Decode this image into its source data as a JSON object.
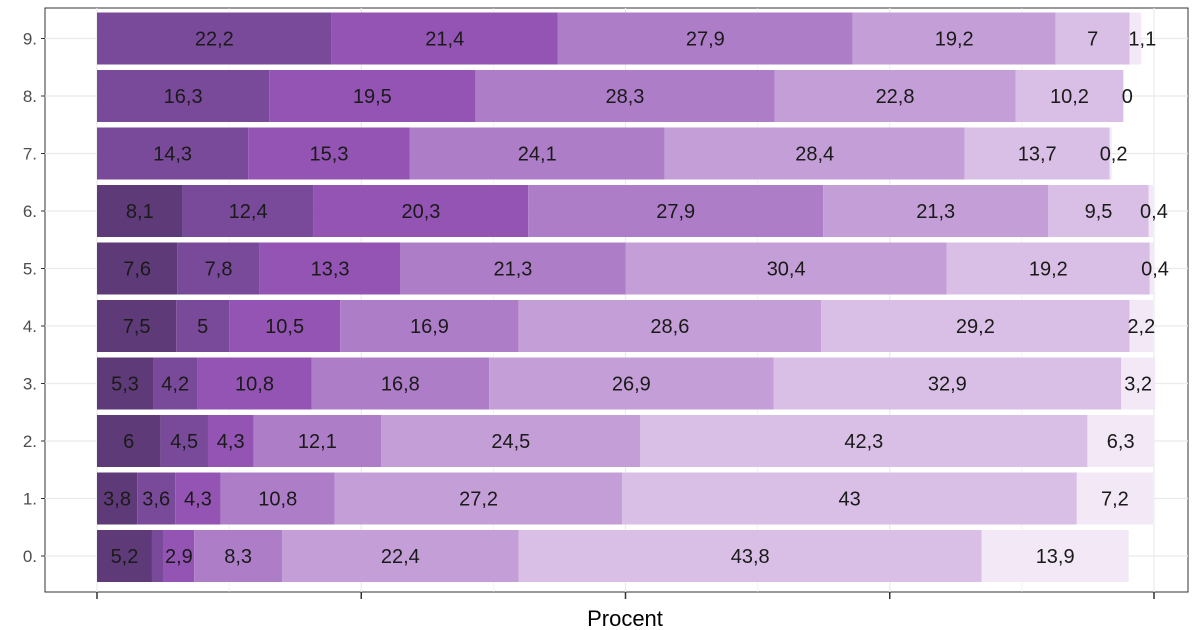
{
  "chart_data": {
    "type": "bar",
    "orientation": "horizontal",
    "stacked": true,
    "stack_total": 100,
    "xlabel": "Procent",
    "ylabel": "",
    "xlim": [
      0,
      100
    ],
    "grid": true,
    "categories": [
      "0.",
      "1.",
      "2.",
      "3.",
      "4.",
      "5.",
      "6.",
      "7.",
      "8.",
      "9."
    ],
    "rows": [
      {
        "category": "0.",
        "values": [
          5.2,
          1.1,
          2.9,
          8.3,
          22.4,
          43.8,
          13.9
        ],
        "labels": [
          "5,2",
          "",
          "2,9",
          "8,3",
          "22,4",
          "43,8",
          "13,9"
        ]
      },
      {
        "category": "1.",
        "values": [
          3.8,
          3.6,
          4.3,
          10.8,
          27.2,
          43,
          7.2
        ],
        "labels": [
          "3,8",
          "3,6",
          "4,3",
          "10,8",
          "27,2",
          "43",
          "7,2"
        ]
      },
      {
        "category": "2.",
        "values": [
          6,
          4.5,
          4.3,
          12.1,
          24.5,
          42.3,
          6.3
        ],
        "labels": [
          "6",
          "4,5",
          "4,3",
          "12,1",
          "24,5",
          "42,3",
          "6,3"
        ]
      },
      {
        "category": "3.",
        "values": [
          5.3,
          4.2,
          10.8,
          16.8,
          26.9,
          32.9,
          3.2
        ],
        "labels": [
          "5,3",
          "4,2",
          "10,8",
          "16,8",
          "26,9",
          "32,9",
          "3,2"
        ]
      },
      {
        "category": "4.",
        "values": [
          7.5,
          5,
          10.5,
          16.9,
          28.6,
          29.2,
          2.2
        ],
        "labels": [
          "7,5",
          "5",
          "10,5",
          "16,9",
          "28,6",
          "29,2",
          "2,2"
        ]
      },
      {
        "category": "5.",
        "values": [
          7.6,
          7.8,
          13.3,
          21.3,
          30.4,
          19.2,
          0.4
        ],
        "labels": [
          "7,6",
          "7,8",
          "13,3",
          "21,3",
          "30,4",
          "19,2",
          "0,4"
        ]
      },
      {
        "category": "6.",
        "values": [
          8.1,
          12.4,
          20.3,
          27.9,
          21.3,
          9.5,
          0.4
        ],
        "labels": [
          "8,1",
          "12,4",
          "20,3",
          "27,9",
          "21,3",
          "9,5",
          "0,4"
        ]
      },
      {
        "category": "7.",
        "values": [
          14.3,
          15.3,
          24.1,
          28.4,
          13.7,
          0.2
        ],
        "labels": [
          "14,3",
          "15,3",
          "24,1",
          "28,4",
          "13,7",
          "0,2"
        ],
        "color_offset": 1
      },
      {
        "category": "8.",
        "values": [
          16.3,
          19.5,
          28.3,
          22.8,
          10.2,
          0
        ],
        "labels": [
          "16,3",
          "19,5",
          "28,3",
          "22,8",
          "10,2",
          "0"
        ],
        "color_offset": 1
      },
      {
        "category": "9.",
        "values": [
          22.2,
          21.4,
          27.9,
          19.2,
          7,
          1.1
        ],
        "labels": [
          "22,2",
          "21,4",
          "27,9",
          "19,2",
          "7",
          "1,1"
        ],
        "color_offset": 1
      }
    ],
    "segment_colors": [
      "#5e3a78",
      "#7a4a9a",
      "#9354b3",
      "#ad7dc8",
      "#c49ed6",
      "#d9bfe6",
      "#f2e8f6"
    ]
  }
}
